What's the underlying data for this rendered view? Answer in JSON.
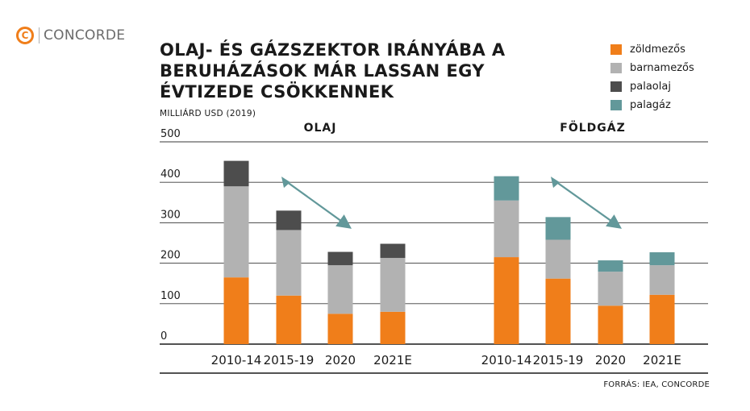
{
  "brand": {
    "name": "CONCORDE",
    "mark": "C",
    "color": "#f07e1a"
  },
  "source": "FORRÁS: IEA, CONCORDE",
  "chart_data": {
    "type": "bar",
    "stacked": true,
    "title": "OLAJ- ÉS GÁZSZEKTOR IRÁNYÁBA A BERUHÁZÁSOK MÁR LASSAN EGY ÉVTIZEDE CSÖKKENNEK",
    "subtitle": "MILLIÁRD USD (2019)",
    "ylim": [
      0,
      500
    ],
    "yticks": [
      0,
      100,
      200,
      300,
      400,
      500
    ],
    "grid": true,
    "legend_position": "top-right",
    "groups": [
      {
        "label": "OLAJ",
        "categories": [
          "2010-14",
          "2015-19",
          "2020",
          "2021E"
        ],
        "series": [
          {
            "name": "zöldmezős",
            "color": "#f07e1a",
            "values": [
              165,
              120,
              75,
              80
            ]
          },
          {
            "name": "barnamezős",
            "color": "#b2b2b2",
            "values": [
              225,
              162,
              120,
              133
            ]
          },
          {
            "name": "palaolaj",
            "color": "#4d4d4d",
            "values": [
              63,
              48,
              33,
              35
            ]
          },
          {
            "name": "palagáz",
            "color": "#62989a",
            "values": [
              0,
              0,
              0,
              0
            ]
          }
        ]
      },
      {
        "label": "FÖLDGÁZ",
        "categories": [
          "2010-14",
          "2015-19",
          "2020",
          "2021E"
        ],
        "series": [
          {
            "name": "zöldmezős",
            "color": "#f07e1a",
            "values": [
              215,
              162,
              95,
              122
            ]
          },
          {
            "name": "barnamezős",
            "color": "#b2b2b2",
            "values": [
              140,
              96,
              84,
              73
            ]
          },
          {
            "name": "palaolaj",
            "color": "#4d4d4d",
            "values": [
              0,
              0,
              0,
              0
            ]
          },
          {
            "name": "palagáz",
            "color": "#62989a",
            "values": [
              60,
              56,
              28,
              32
            ]
          }
        ]
      }
    ],
    "trend_arrows": [
      {
        "group": "OLAJ",
        "from": {
          "category": "2015-19",
          "value": 410
        },
        "to": {
          "category": "2020",
          "value": 285
        },
        "color": "#62989a"
      },
      {
        "group": "FÖLDGÁZ",
        "from": {
          "category": "2015-19",
          "value": 410
        },
        "to": {
          "category": "2020",
          "value": 285
        },
        "color": "#62989a"
      }
    ],
    "legend": [
      {
        "label": "zöldmezős",
        "color": "#f07e1a"
      },
      {
        "label": "barnamezős",
        "color": "#b2b2b2"
      },
      {
        "label": "palaolaj",
        "color": "#4d4d4d"
      },
      {
        "label": "palagáz",
        "color": "#62989a"
      }
    ]
  }
}
